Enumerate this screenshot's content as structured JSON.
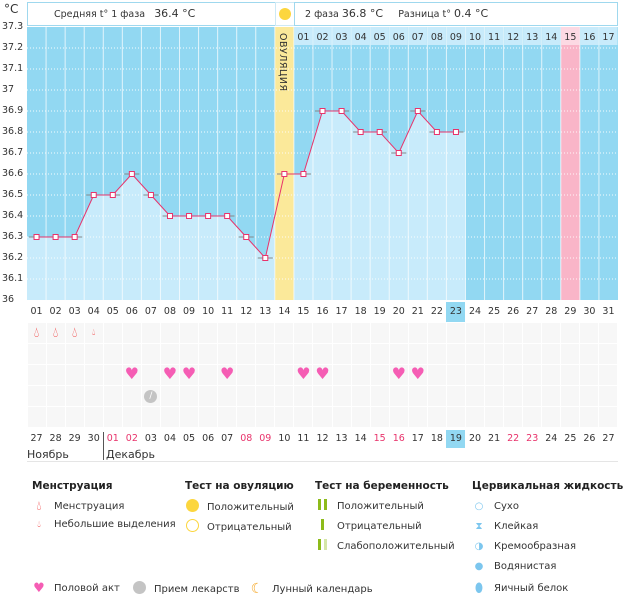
{
  "header": {
    "unit": "°C",
    "phase1_label": "Средняя t° 1 фаза",
    "phase1_value": "36.4 °C",
    "phase2_label": "2 фаза",
    "phase2_value": "36.8 °C",
    "diff_label": "Разница t°",
    "diff_value": "0.4 °C",
    "ovulation_label": "ОВУЛЯЦИЯ"
  },
  "chart_data": {
    "type": "line",
    "title": "",
    "ylabel": "°C",
    "ylim": [
      36,
      37.3
    ],
    "yticks": [
      "37.3",
      "37.2",
      "37.1",
      "37",
      "36.9",
      "36.8",
      "36.7",
      "36.6",
      "36.5",
      "36.4",
      "36.3",
      "36.2",
      "36.1",
      "36"
    ],
    "cycle_days": [
      "01",
      "02",
      "03",
      "04",
      "05",
      "06",
      "07",
      "08",
      "09",
      "10",
      "11",
      "12",
      "13",
      "14",
      "15",
      "16",
      "17",
      "18",
      "19",
      "20",
      "21",
      "22",
      "23",
      "24",
      "25",
      "26",
      "27",
      "28",
      "29",
      "30",
      "31"
    ],
    "phase2_days": [
      "01",
      "02",
      "03",
      "04",
      "05",
      "06",
      "07",
      "08",
      "09",
      "10",
      "11",
      "12",
      "13",
      "14",
      "15",
      "16",
      "17"
    ],
    "temperatures": [
      36.3,
      36.3,
      36.3,
      36.5,
      36.5,
      36.6,
      36.5,
      36.4,
      36.4,
      36.4,
      36.4,
      36.3,
      36.2,
      36.6,
      36.6,
      36.9,
      36.9,
      36.8,
      36.8,
      36.7,
      36.9,
      36.8,
      36.8
    ],
    "ovulation_day": 14,
    "current_day": 23,
    "expected_period_day": 29
  },
  "calendar": {
    "dates": [
      "27",
      "28",
      "29",
      "30",
      "01",
      "02",
      "03",
      "04",
      "05",
      "06",
      "07",
      "08",
      "09",
      "10",
      "11",
      "12",
      "13",
      "14",
      "15",
      "16",
      "17",
      "18",
      "19",
      "20",
      "21",
      "22",
      "23",
      "24",
      "25",
      "26",
      "27"
    ],
    "weekend_indexes": [
      4,
      5,
      11,
      12,
      18,
      19,
      25,
      26
    ],
    "months": [
      "Ноябрь",
      "Декабрь"
    ]
  },
  "events": {
    "menstruation": [
      1,
      2,
      3
    ],
    "spotting": [
      4
    ],
    "intercourse": [
      6,
      8,
      9,
      11,
      15,
      16,
      20,
      21
    ],
    "medication": [
      7
    ]
  },
  "legend": {
    "menstruation_title": "Менструация",
    "menstruation": "Менструация",
    "spotting": "Небольшие выделения",
    "ovulation_test_title": "Тест на овуляцию",
    "ov_positive": "Положительный",
    "ov_negative": "Отрицательный",
    "pregnancy_test_title": "Тест на беременность",
    "preg_positive": "Положительный",
    "preg_negative": "Отрицательный",
    "preg_weak": "Слабоположительный",
    "cervical_title": "Цервикальная жидкость",
    "dry": "Сухо",
    "sticky": "Клейкая",
    "creamy": "Кремообразная",
    "watery": "Водянистая",
    "eggwhite": "Яичный белок",
    "intercourse": "Половой акт",
    "medication": "Прием лекарств",
    "lunar": "Лунный календарь"
  },
  "colors": {
    "above": "#92d8f2",
    "below": "#c8ebfb",
    "line": "#e8336b",
    "ovulation": "#fbe99a",
    "period": "#f9b5c8",
    "weekend": "#e8336b"
  }
}
